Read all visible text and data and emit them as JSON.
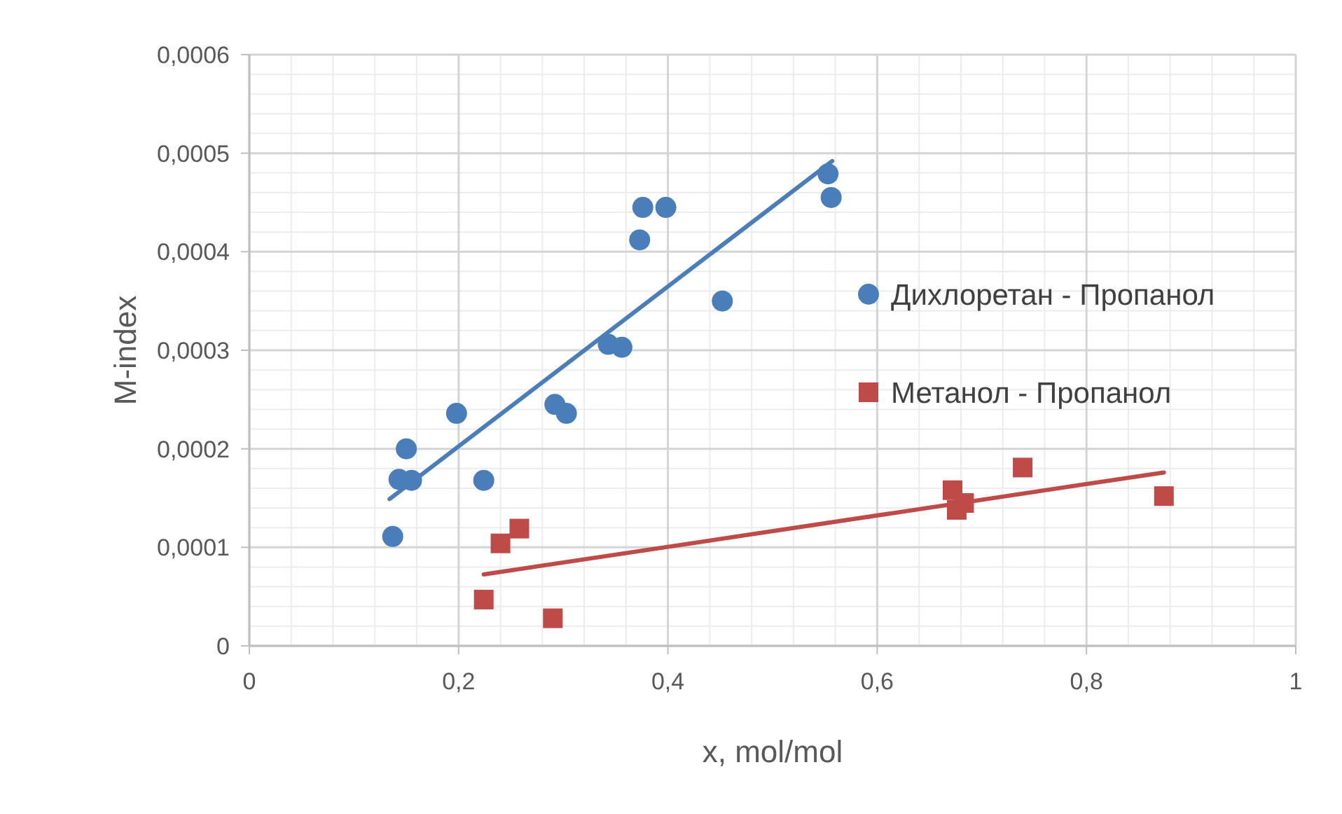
{
  "chart_data": {
    "type": "scatter",
    "xlabel": "x, mol/mol",
    "ylabel": "M-index",
    "xlim": [
      0,
      1
    ],
    "ylim": [
      0,
      0.0006
    ],
    "xticks": [
      0,
      {
        "value": 0.2,
        "label": "0,2"
      },
      {
        "value": 0.4,
        "label": "0,4"
      },
      {
        "value": 0.6,
        "label": "0,6"
      },
      {
        "value": 0.8,
        "label": "0,8"
      },
      1
    ],
    "yticks": [
      0,
      {
        "value": 0.0001,
        "label": "0,0001"
      },
      {
        "value": 0.0002,
        "label": "0,0002"
      },
      {
        "value": 0.0003,
        "label": "0,0003"
      },
      {
        "value": 0.0004,
        "label": "0,0004"
      },
      {
        "value": 0.0005,
        "label": "0,0005"
      },
      {
        "value": 0.0006,
        "label": "0,0006"
      }
    ],
    "grid": true,
    "legend": "right",
    "series": [
      {
        "name": "Дихлоретан - Пропанол",
        "color": "#4a7ebb",
        "marker": "circle",
        "x": [
          0.137,
          0.143,
          0.15,
          0.155,
          0.198,
          0.224,
          0.292,
          0.303,
          0.343,
          0.356,
          0.373,
          0.376,
          0.398,
          0.452,
          0.553,
          0.556
        ],
        "values": [
          0.000111,
          0.000169,
          0.0002,
          0.000168,
          0.000236,
          0.000168,
          0.000245,
          0.000236,
          0.000306,
          0.000303,
          0.000412,
          0.000445,
          0.000445,
          0.00035,
          0.000479,
          0.000455
        ]
      },
      {
        "name": "Метанол - Пропанол",
        "color": "#be4b48",
        "marker": "square",
        "x": [
          0.224,
          0.24,
          0.258,
          0.29,
          0.672,
          0.676,
          0.683,
          0.739,
          0.874
        ],
        "values": [
          4.7e-05,
          0.000104,
          0.000119,
          2.8e-05,
          0.000158,
          0.000138,
          0.000145,
          0.000181,
          0.000152
        ]
      },
      {
        "type": "line",
        "color": "#4a7ebb",
        "x": [
          0.134,
          0.557
        ],
        "values": [
          0.000149,
          0.000492
        ]
      },
      {
        "type": "line",
        "color": "#be4b48",
        "x": [
          0.224,
          0.874
        ],
        "values": [
          7.25e-05,
          0.000176
        ]
      }
    ]
  }
}
